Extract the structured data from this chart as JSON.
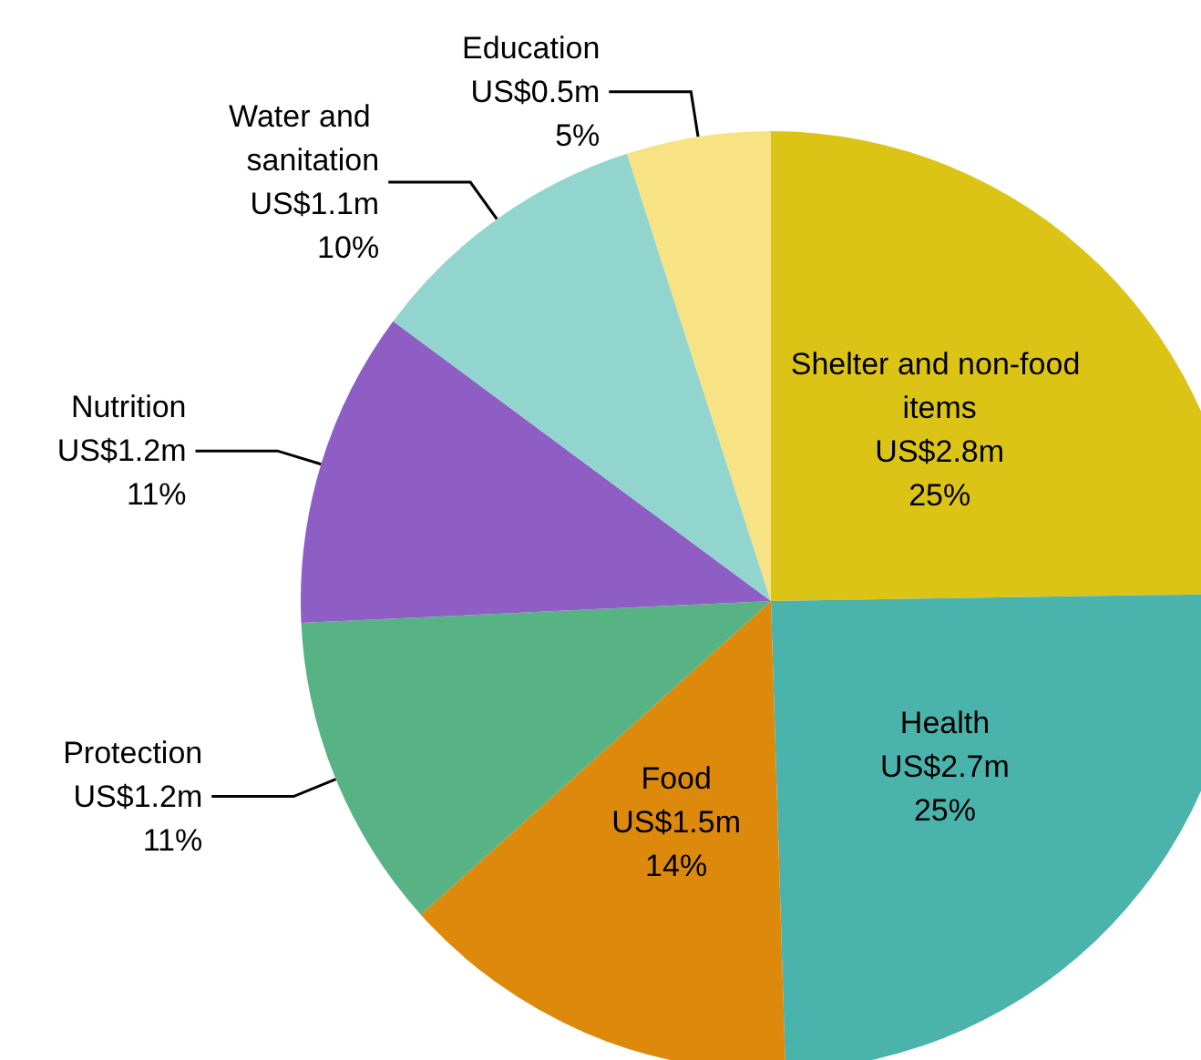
{
  "chart_data": {
    "type": "pie",
    "categories": [
      "Shelter and non-food items",
      "Health",
      "Food",
      "Protection",
      "Nutrition",
      "Water and sanitation",
      "Education"
    ],
    "values": [
      25,
      25,
      14,
      11,
      11,
      10,
      5
    ],
    "value_labels": [
      "US$2.8m\n25%",
      "US$2.7m\n25%",
      "US$1.5m\n14%",
      "US$1.2m\n11%",
      "US$1.2m\n11%",
      "US$1.1m\n10%",
      "US$0.5m\n5%"
    ],
    "colors": [
      "#dcc416",
      "#4ab3ab",
      "#dd8a0c",
      "#57b383",
      "#8e5ec4",
      "#92d5cf",
      "#f7e383"
    ],
    "legend": false
  }
}
